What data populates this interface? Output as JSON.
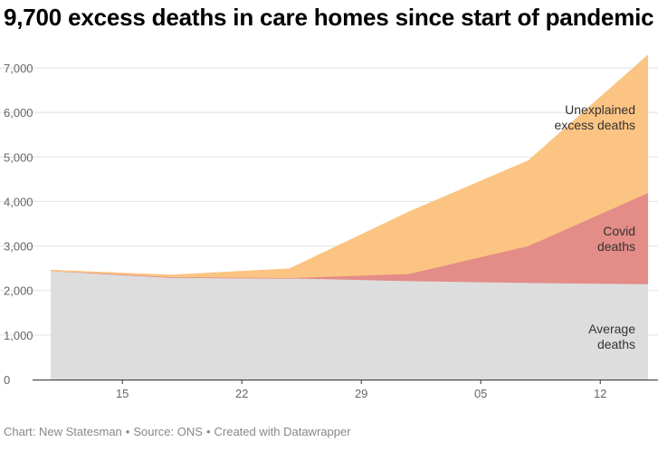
{
  "title": "9,700 excess deaths in care homes since start of pandemic",
  "footer": {
    "chart_credit": "Chart: New Statesman",
    "source": "Source: ONS",
    "made_with": "Created with Datawrapper"
  },
  "chart_data": {
    "type": "area",
    "stacked": true,
    "x": [
      1,
      2,
      3,
      4,
      5,
      6
    ],
    "xticks": [
      {
        "at": 1.6,
        "label": "15"
      },
      {
        "at": 2.6,
        "label": "22"
      },
      {
        "at": 3.6,
        "label": "29"
      },
      {
        "at": 4.6,
        "label": "05"
      },
      {
        "at": 5.6,
        "label": "12"
      }
    ],
    "xlim": [
      1,
      6
    ],
    "ylim": [
      0,
      7000
    ],
    "yticks": [
      0,
      1000,
      2000,
      3000,
      4000,
      5000,
      6000,
      7000
    ],
    "ytick_labels": [
      "0",
      "1,000",
      "2,000",
      "3,000",
      "4,000",
      "5,000",
      "6,000",
      "7,000"
    ],
    "grid": true,
    "series": [
      {
        "key": "average",
        "label_lines": [
          "Average",
          "deaths"
        ],
        "color": "#dddddd",
        "values": [
          2450,
          2300,
          2270,
          2210,
          2170,
          2140
        ]
      },
      {
        "key": "covid",
        "label_lines": [
          "Covid",
          "deaths"
        ],
        "color": "#e38c88",
        "values": [
          0,
          0,
          10,
          160,
          830,
          2050
        ]
      },
      {
        "key": "unexplained",
        "label_lines": [
          "Unexplained",
          "excess deaths"
        ],
        "color": "#fcc482",
        "values": [
          0,
          40,
          200,
          1390,
          1910,
          3090
        ]
      }
    ]
  }
}
